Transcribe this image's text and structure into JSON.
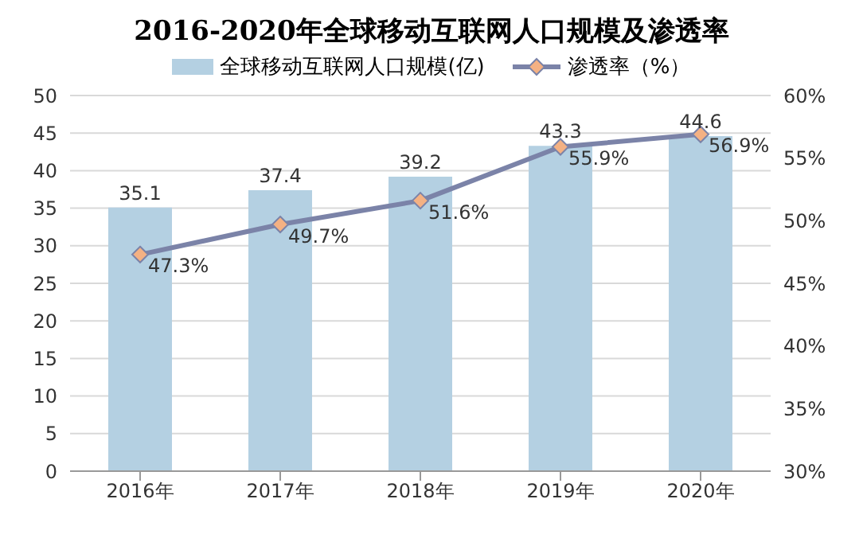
{
  "chart_data": {
    "type": "bar",
    "title": "2016-2020年全球移动互联网人口规模及渗透率",
    "categories": [
      "2016年",
      "2017年",
      "2018年",
      "2019年",
      "2020年"
    ],
    "series": [
      {
        "name": "全球移动互联网人口规模(亿)",
        "color": "#b4d0e2",
        "values": [
          35.1,
          37.4,
          39.2,
          43.3,
          44.6
        ],
        "value_labels": [
          "35.1",
          "37.4",
          "39.2",
          "43.3",
          "44.6"
        ]
      },
      {
        "name": "渗透率（%）",
        "type": "line",
        "axis": "y2",
        "color": "#7b83a8",
        "marker": "diamond",
        "values": [
          47.3,
          49.7,
          51.6,
          55.9,
          56.9
        ],
        "value_labels": [
          "47.3%",
          "49.7%",
          "51.6%",
          "55.9%",
          "56.9%"
        ]
      }
    ],
    "ylim": [
      0,
      50
    ],
    "yticks": [
      0,
      5,
      10,
      15,
      20,
      25,
      30,
      35,
      40,
      45,
      50
    ],
    "y2lim": [
      30,
      60
    ],
    "y2ticks": [
      {
        "value": 30,
        "label": "30%"
      },
      {
        "value": 35,
        "label": "35%"
      },
      {
        "value": 40,
        "label": "40%"
      },
      {
        "value": 45,
        "label": "45%"
      },
      {
        "value": 50,
        "label": "50%"
      },
      {
        "value": 55,
        "label": "55%"
      },
      {
        "value": 60,
        "label": "60%"
      }
    ],
    "grid": "y",
    "legend": "top"
  }
}
